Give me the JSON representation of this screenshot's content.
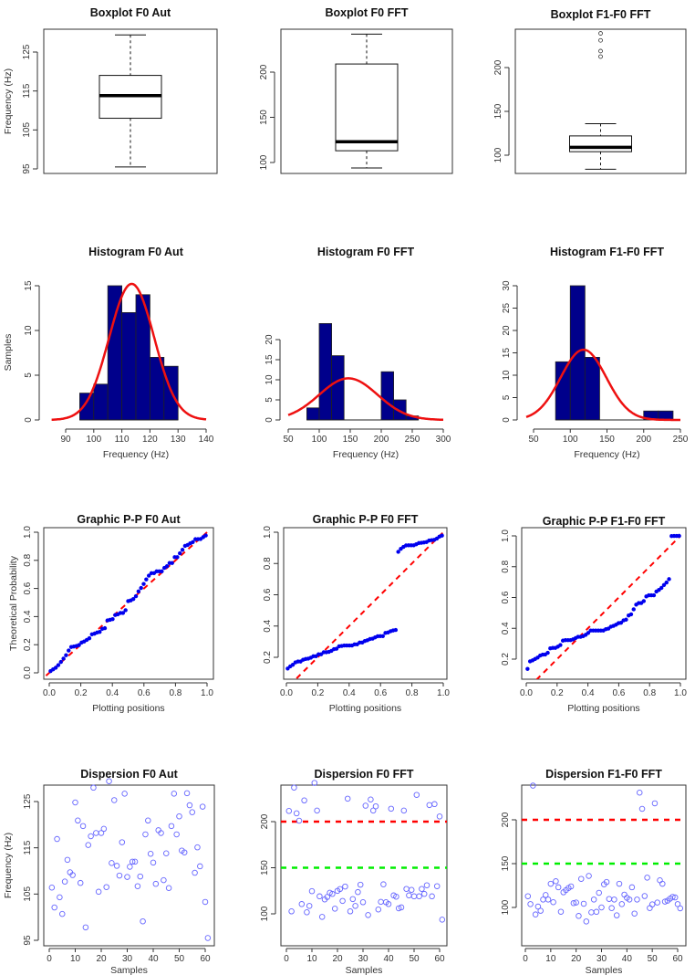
{
  "colors": {
    "bar": "#00008B",
    "curve": "#EE1111",
    "pp_points": "#0000EE",
    "dispersion_points": "#6666FF",
    "ref_red": "#FF0000",
    "ref_green": "#00EE00",
    "diagonal": "#FF0000"
  },
  "chart_data": [
    {
      "type": "boxplot",
      "title": "Boxplot F0 Aut",
      "xlabel": "",
      "ylabel": "Frequency (Hz)",
      "yticks": [
        95,
        105,
        115,
        125
      ],
      "stats": {
        "min": 95.5,
        "q1": 108,
        "median": 113.8,
        "q3": 119,
        "max": 129.4,
        "outliers": []
      }
    },
    {
      "type": "boxplot",
      "title": "Boxplot F0 FFT",
      "xlabel": "",
      "ylabel": "",
      "yticks": [
        100,
        150,
        200
      ],
      "stats": {
        "min": 94,
        "q1": 113,
        "median": 123,
        "q3": 209,
        "max": 242,
        "outliers": []
      }
    },
    {
      "type": "boxplot",
      "title": "Boxplot F1-F0 FFT",
      "xlabel": "",
      "ylabel": "",
      "yticks": [
        100,
        150,
        200
      ],
      "stats": {
        "min": 84,
        "q1": 104,
        "median": 109,
        "q3": 122,
        "max": 136,
        "outliers": [
          212.5,
          218.8,
          231,
          239
        ]
      }
    },
    {
      "type": "bar",
      "subtype": "histogram",
      "title": "Histogram F0 Aut",
      "xlabel": "Frequency (Hz)",
      "ylabel": "Samples",
      "bins": [
        [
          95,
          100
        ],
        [
          100,
          105
        ],
        [
          105,
          110
        ],
        [
          110,
          115
        ],
        [
          115,
          120
        ],
        [
          120,
          125
        ],
        [
          125,
          130
        ]
      ],
      "values": [
        3,
        4,
        15,
        12,
        14,
        7,
        6
      ],
      "xticks": [
        90,
        100,
        110,
        120,
        130,
        140
      ],
      "yticks": [
        0,
        5,
        10,
        15
      ],
      "xlim": [
        85,
        140
      ],
      "normal_fit": {
        "mean": 113.5,
        "sd": 8.0,
        "n": 61,
        "binwidth": 5
      }
    },
    {
      "type": "bar",
      "subtype": "histogram",
      "title": "Histogram F0 FFT",
      "xlabel": "Frequency (Hz)",
      "ylabel": "",
      "bins": [
        [
          80,
          100
        ],
        [
          100,
          120
        ],
        [
          120,
          140
        ],
        [
          140,
          160
        ],
        [
          160,
          180
        ],
        [
          180,
          200
        ],
        [
          200,
          220
        ],
        [
          220,
          240
        ],
        [
          240,
          260
        ]
      ],
      "values": [
        3,
        24,
        16,
        0,
        0,
        0,
        12,
        5,
        1
      ],
      "xticks": [
        50,
        100,
        150,
        200,
        250,
        300
      ],
      "yticks": [
        0,
        5,
        10,
        15,
        20
      ],
      "xlim": [
        50,
        300
      ],
      "normal_fit": {
        "mean": 147,
        "sd": 47,
        "n": 61,
        "binwidth": 20
      }
    },
    {
      "type": "bar",
      "subtype": "histogram",
      "title": "Histogram F1-F0 FFT",
      "xlabel": "Frequency (Hz)",
      "ylabel": "",
      "bins": [
        [
          80,
          100
        ],
        [
          100,
          120
        ],
        [
          120,
          140
        ],
        [
          140,
          160
        ],
        [
          160,
          180
        ],
        [
          180,
          200
        ],
        [
          200,
          220
        ],
        [
          220,
          240
        ]
      ],
      "values": [
        13,
        30,
        14,
        0,
        0,
        0,
        2,
        2
      ],
      "xticks": [
        50,
        100,
        150,
        200,
        250
      ],
      "yticks": [
        0,
        5,
        10,
        15,
        20,
        25,
        30
      ],
      "xlim": [
        40,
        250
      ],
      "normal_fit": {
        "mean": 118,
        "sd": 31,
        "n": 61,
        "binwidth": 20
      }
    },
    {
      "type": "scatter",
      "subtype": "pp-plot",
      "title": "Graphic P-P F0 Aut",
      "xlabel": "Plotting positions",
      "ylabel": "Theoretical Probability",
      "source_series": 9,
      "normal_fit": {
        "mean": 113.5,
        "sd": 8.0
      },
      "xticks": [
        "0.0",
        "0.2",
        "0.4",
        "0.6",
        "0.8",
        "1.0"
      ],
      "yticks": [
        "0.0",
        "0.2",
        "0.4",
        "0.6",
        "0.8",
        "1.0"
      ],
      "reference_line": "y = x"
    },
    {
      "type": "scatter",
      "subtype": "pp-plot",
      "title": "Graphic P-P F0 FFT",
      "xlabel": "Plotting positions",
      "ylabel": "",
      "source_series": 10,
      "normal_fit": {
        "mean": 147,
        "sd": 47
      },
      "xticks": [
        "0.0",
        "0.2",
        "0.4",
        "0.6",
        "0.8",
        "1.0"
      ],
      "yticks": [
        "0.2",
        "0.4",
        "0.6",
        "0.8",
        "1.0"
      ],
      "reference_line": "y = x"
    },
    {
      "type": "scatter",
      "subtype": "pp-plot",
      "title": "Graphic P-P F1-F0 FFT",
      "xlabel": "Plotting positions",
      "ylabel": "",
      "source_series": 11,
      "normal_fit": {
        "mean": 118,
        "sd": 31
      },
      "xticks": [
        "0.0",
        "0.2",
        "0.4",
        "0.6",
        "0.8",
        "1.0"
      ],
      "yticks": [
        "0.2",
        "0.4",
        "0.6",
        "0.8",
        "1.0"
      ],
      "reference_line": "y = x"
    },
    {
      "type": "scatter",
      "title": "Dispersion F0 Aut",
      "xlabel": "Samples",
      "ylabel": "Frequency (Hz)",
      "xticks": [
        0,
        10,
        20,
        30,
        40,
        50,
        60
      ],
      "yticks": [
        95,
        105,
        115,
        125
      ],
      "hlines": [],
      "y": [
        106.4,
        102.1,
        116.9,
        104.3,
        100.7,
        107.7,
        112.4,
        109.7,
        109.1,
        124.8,
        120.9,
        107.4,
        119.7,
        97.8,
        115.6,
        117.5,
        128.0,
        118.2,
        105.5,
        118.2,
        119.1,
        106.5,
        129.4,
        111.7,
        125.3,
        111.1,
        109.0,
        116.2,
        126.7,
        108.7,
        110.9,
        112.0,
        112.0,
        106.7,
        108.8,
        99.1,
        117.9,
        120.9,
        113.7,
        111.8,
        107.2,
        118.8,
        118.2,
        108.0,
        113.8,
        106.3,
        119.7,
        126.7,
        117.9,
        121.8,
        114.4,
        114.0,
        126.8,
        124.2,
        122.7,
        109.6,
        115.1,
        111.0,
        123.9,
        103.3,
        95.5
      ]
    },
    {
      "type": "scatter",
      "title": "Dispersion F0 FFT",
      "xlabel": "Samples",
      "ylabel": "",
      "xticks": [
        0,
        10,
        20,
        30,
        40,
        50,
        60
      ],
      "yticks": [
        100,
        150,
        200
      ],
      "hlines": [
        {
          "y": 200,
          "color": "red"
        },
        {
          "y": 150,
          "color": "green"
        }
      ],
      "y": [
        211.6,
        102.7,
        236.9,
        209,
        201,
        110.6,
        223,
        101.7,
        108.6,
        124.6,
        242,
        212,
        119,
        96.7,
        115.6,
        118.3,
        122.9,
        121.6,
        105.6,
        124.9,
        126.9,
        114,
        129.6,
        224.9,
        102.7,
        116,
        108.6,
        123.6,
        131.6,
        112.6,
        217.3,
        98.7,
        224,
        212,
        216.6,
        104.7,
        113,
        132,
        112.6,
        110.6,
        214,
        120,
        118.6,
        106,
        107,
        212,
        127,
        120,
        126,
        119,
        229,
        119,
        127,
        121.6,
        131,
        218,
        119,
        219,
        130,
        205.6,
        93.7
      ]
    },
    {
      "type": "scatter",
      "title": "Dispersion F1-F0 FFT",
      "xlabel": "Samples",
      "ylabel": "",
      "xticks": [
        0,
        10,
        20,
        30,
        40,
        50,
        60
      ],
      "yticks": [
        100,
        150,
        200
      ],
      "hlines": [
        {
          "y": 200,
          "color": "red"
        },
        {
          "y": 150,
          "color": "green"
        }
      ],
      "y": [
        112.8,
        103.8,
        239,
        92,
        101,
        96.2,
        109,
        114.2,
        109,
        127,
        106,
        129.9,
        123,
        95.1,
        117.3,
        119.8,
        122.2,
        124,
        104.9,
        105.6,
        90.3,
        132.6,
        104.2,
        84,
        136,
        94.4,
        109,
        95,
        116.7,
        100,
        126.4,
        129,
        109.7,
        99.3,
        109,
        91,
        127,
        103.8,
        114.6,
        111,
        109,
        123,
        93,
        109,
        231,
        212.5,
        113,
        134,
        99.3,
        103.5,
        218.8,
        105.6,
        131,
        127,
        106.7,
        107.7,
        110,
        112,
        111.4,
        103.8,
        99
      ]
    }
  ]
}
